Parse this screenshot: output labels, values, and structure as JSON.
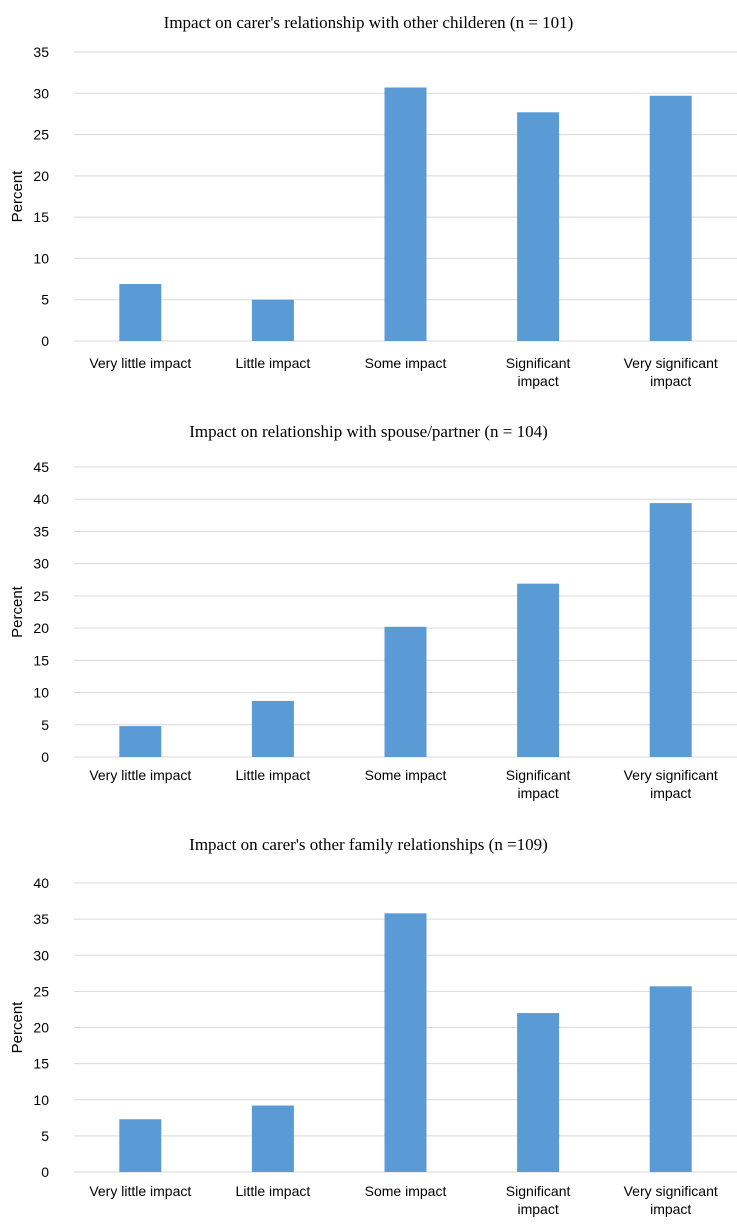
{
  "chart_data": [
    {
      "type": "bar",
      "title": "Impact on carer's relationship with other childeren (n = 101)",
      "xlabel": "",
      "ylabel": "Percent",
      "ylim": [
        0,
        35
      ],
      "ytick_step": 5,
      "grid": true,
      "categories": [
        "Very little impact",
        "Little impact",
        "Some impact",
        "Significant impact",
        "Very significant impact"
      ],
      "category_lines": [
        [
          "Very little impact"
        ],
        [
          "Little impact"
        ],
        [
          "Some impact"
        ],
        [
          "Significant",
          "impact"
        ],
        [
          "Very significant",
          "impact"
        ]
      ],
      "values": [
        6.9,
        5.0,
        30.7,
        27.7,
        29.7
      ],
      "color": "#5b9bd5"
    },
    {
      "type": "bar",
      "title": "Impact on relationship with spouse/partner (n = 104)",
      "xlabel": "",
      "ylabel": "Percent",
      "ylim": [
        0,
        45
      ],
      "ytick_step": 5,
      "grid": true,
      "categories": [
        "Very little impact",
        "Little impact",
        "Some impact",
        "Significant impact",
        "Very significant impact"
      ],
      "category_lines": [
        [
          "Very little impact"
        ],
        [
          "Little impact"
        ],
        [
          "Some impact"
        ],
        [
          "Significant",
          "impact"
        ],
        [
          "Very significant",
          "impact"
        ]
      ],
      "values": [
        4.8,
        8.7,
        20.2,
        26.9,
        39.4
      ],
      "color": "#5b9bd5"
    },
    {
      "type": "bar",
      "title": "Impact on carer's other family relationships (n =109)",
      "xlabel": "",
      "ylabel": "Percent",
      "ylim": [
        0,
        40
      ],
      "ytick_step": 5,
      "grid": true,
      "categories": [
        "Very little impact",
        "Little impact",
        "Some impact",
        "Significant impact",
        "Very significant impact"
      ],
      "category_lines": [
        [
          "Very little impact"
        ],
        [
          "Little impact"
        ],
        [
          "Some impact"
        ],
        [
          "Significant",
          "impact"
        ],
        [
          "Very significant",
          "impact"
        ]
      ],
      "values": [
        7.3,
        9.2,
        35.8,
        22.0,
        25.7
      ],
      "color": "#5b9bd5"
    }
  ]
}
